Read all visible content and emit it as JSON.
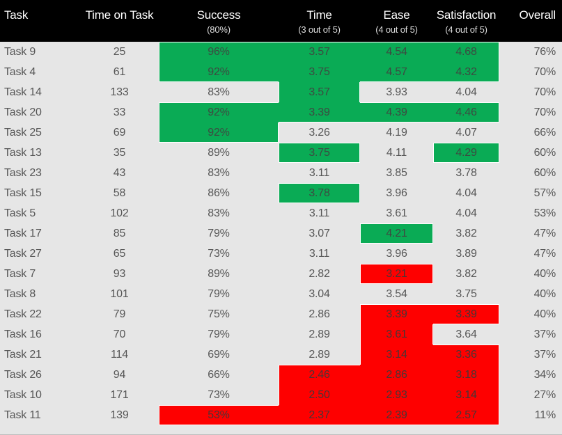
{
  "palette": {
    "header_bg": "#000000",
    "header_text": "#ffffff",
    "row_bg": "#e6e6e6",
    "green": "#0aab55",
    "red": "#fe0000",
    "body_text": "#565656",
    "separator": "#ffffff"
  },
  "chart_data": {
    "type": "table",
    "title": "",
    "legend": "conditional cell fill: green = good score, red = poor score",
    "columns": [
      {
        "key": "task",
        "label": "Task",
        "sub": "",
        "align": "left"
      },
      {
        "key": "time_on_task",
        "label": "Time on Task",
        "sub": "",
        "align": "center"
      },
      {
        "key": "success",
        "label": "Success",
        "sub": "(80%)",
        "align": "center"
      },
      {
        "key": "time",
        "label": "Time",
        "sub": "(3 out of 5)",
        "align": "center"
      },
      {
        "key": "ease",
        "label": "Ease",
        "sub": "(4 out of 5)",
        "align": "center"
      },
      {
        "key": "satisfaction",
        "label": "Satisfaction",
        "sub": "(4 out of 5)",
        "align": "center"
      },
      {
        "key": "overall",
        "label": "Overall",
        "sub": "",
        "align": "right"
      }
    ],
    "rows": [
      {
        "task": "Task 9",
        "time_on_task": "25",
        "success": "96%",
        "time": "3.57",
        "ease": "4.54",
        "satisfaction": "4.68",
        "overall": "76%",
        "colors": {
          "success": "green",
          "time": "green",
          "ease": "green",
          "satisfaction": "green"
        }
      },
      {
        "task": "Task 4",
        "time_on_task": "61",
        "success": "92%",
        "time": "3.75",
        "ease": "4.57",
        "satisfaction": "4.32",
        "overall": "70%",
        "colors": {
          "success": "green",
          "time": "green",
          "ease": "green",
          "satisfaction": "green"
        }
      },
      {
        "task": "Task 14",
        "time_on_task": "133",
        "success": "83%",
        "time": "3.57",
        "ease": "3.93",
        "satisfaction": "4.04",
        "overall": "70%",
        "colors": {
          "time": "green"
        }
      },
      {
        "task": "Task 20",
        "time_on_task": "33",
        "success": "92%",
        "time": "3.39",
        "ease": "4.39",
        "satisfaction": "4.46",
        "overall": "70%",
        "colors": {
          "success": "green",
          "time": "green",
          "ease": "green",
          "satisfaction": "green"
        }
      },
      {
        "task": "Task 25",
        "time_on_task": "69",
        "success": "92%",
        "time": "3.26",
        "ease": "4.19",
        "satisfaction": "4.07",
        "overall": "66%",
        "colors": {
          "success": "green"
        }
      },
      {
        "task": "Task 13",
        "time_on_task": "35",
        "success": "89%",
        "time": "3.75",
        "ease": "4.11",
        "satisfaction": "4.29",
        "overall": "60%",
        "colors": {
          "time": "green",
          "satisfaction": "green"
        }
      },
      {
        "task": "Task 23",
        "time_on_task": "43",
        "success": "83%",
        "time": "3.11",
        "ease": "3.85",
        "satisfaction": "3.78",
        "overall": "60%",
        "colors": {}
      },
      {
        "task": "Task 15",
        "time_on_task": "58",
        "success": "86%",
        "time": "3.78",
        "ease": "3.96",
        "satisfaction": "4.04",
        "overall": "57%",
        "colors": {
          "time": "green"
        }
      },
      {
        "task": "Task 5",
        "time_on_task": "102",
        "success": "83%",
        "time": "3.11",
        "ease": "3.61",
        "satisfaction": "4.04",
        "overall": "53%",
        "colors": {}
      },
      {
        "task": "Task 17",
        "time_on_task": "85",
        "success": "79%",
        "time": "3.07",
        "ease": "4.21",
        "satisfaction": "3.82",
        "overall": "47%",
        "colors": {
          "ease": "green"
        }
      },
      {
        "task": "Task 27",
        "time_on_task": "65",
        "success": "73%",
        "time": "3.11",
        "ease": "3.96",
        "satisfaction": "3.89",
        "overall": "47%",
        "colors": {}
      },
      {
        "task": "Task 7",
        "time_on_task": "93",
        "success": "89%",
        "time": "2.82",
        "ease": "3.21",
        "satisfaction": "3.82",
        "overall": "40%",
        "colors": {
          "ease": "red"
        }
      },
      {
        "task": "Task 8",
        "time_on_task": "101",
        "success": "79%",
        "time": "3.04",
        "ease": "3.54",
        "satisfaction": "3.75",
        "overall": "40%",
        "colors": {}
      },
      {
        "task": "Task 22",
        "time_on_task": "79",
        "success": "75%",
        "time": "2.86",
        "ease": "3.39",
        "satisfaction": "3.39",
        "overall": "40%",
        "colors": {
          "ease": "red",
          "satisfaction": "red"
        }
      },
      {
        "task": "Task 16",
        "time_on_task": "70",
        "success": "79%",
        "time": "2.89",
        "ease": "3.61",
        "satisfaction": "3.64",
        "overall": "37%",
        "colors": {
          "ease": "red"
        }
      },
      {
        "task": "Task 21",
        "time_on_task": "114",
        "success": "69%",
        "time": "2.89",
        "ease": "3.14",
        "satisfaction": "3.36",
        "overall": "37%",
        "colors": {
          "ease": "red",
          "satisfaction": "red"
        }
      },
      {
        "task": "Task 26",
        "time_on_task": "94",
        "success": "66%",
        "time": "2.46",
        "ease": "2.86",
        "satisfaction": "3.18",
        "overall": "34%",
        "colors": {
          "time": "red",
          "ease": "red",
          "satisfaction": "red"
        }
      },
      {
        "task": "Task 10",
        "time_on_task": "171",
        "success": "73%",
        "time": "2.50",
        "ease": "2.93",
        "satisfaction": "3.14",
        "overall": "27%",
        "colors": {
          "time": "red",
          "ease": "red",
          "satisfaction": "red"
        }
      },
      {
        "task": "Task 11",
        "time_on_task": "139",
        "success": "53%",
        "time": "2.37",
        "ease": "2.39",
        "satisfaction": "2.57",
        "overall": "11%",
        "colors": {
          "success": "red",
          "time": "red",
          "ease": "red",
          "satisfaction": "red"
        }
      }
    ]
  }
}
